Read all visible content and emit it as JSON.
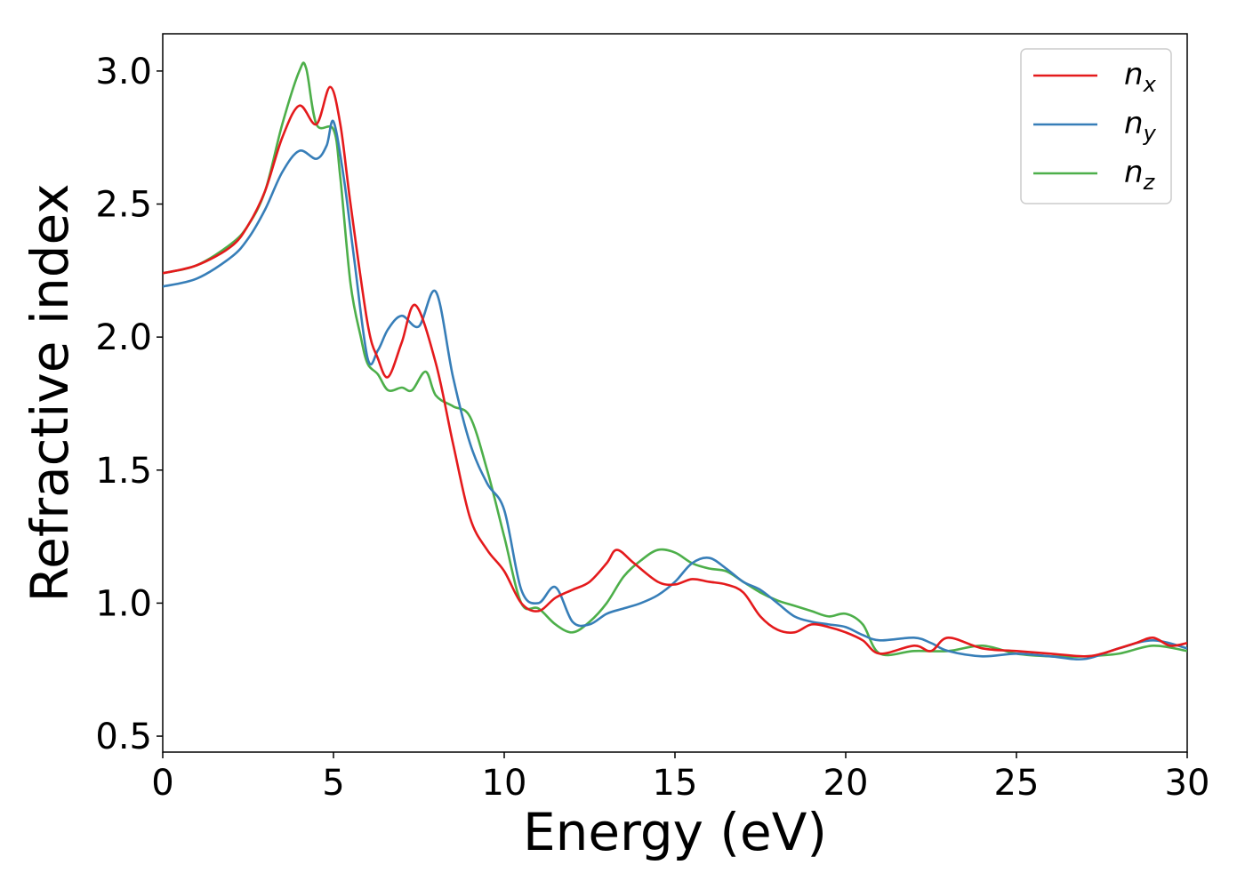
{
  "chart_data": {
    "type": "line",
    "title": "",
    "xlabel": "Energy (eV)",
    "ylabel": "Refractive index",
    "xlim": [
      0,
      30
    ],
    "ylim": [
      0.44,
      3.14
    ],
    "xticks": [
      0,
      5,
      10,
      15,
      20,
      25,
      30
    ],
    "xtick_labels": [
      "0",
      "5",
      "10",
      "15",
      "20",
      "25",
      "30"
    ],
    "yticks": [
      0.5,
      1.0,
      1.5,
      2.0,
      2.5,
      3.0
    ],
    "ytick_labels": [
      "0.5",
      "1.0",
      "1.5",
      "2.0",
      "2.5",
      "3.0"
    ],
    "grid": false,
    "legend_position": "top-right",
    "series": [
      {
        "name": "n_x",
        "label_main": "n",
        "label_sub": "x",
        "color": "#e41a1c",
        "x": [
          0,
          1,
          2,
          2.5,
          3,
          3.5,
          4,
          4.5,
          4.9,
          5.2,
          5.5,
          6,
          6.3,
          6.6,
          7,
          7.4,
          8,
          8.5,
          9,
          9.5,
          10,
          10.5,
          11,
          11.5,
          12,
          12.5,
          13,
          13.3,
          13.8,
          14.5,
          15,
          15.5,
          16,
          16.5,
          17,
          17.5,
          18,
          18.5,
          19,
          19.5,
          20,
          20.5,
          21,
          22,
          22.5,
          23,
          24,
          25,
          26,
          27,
          27.5,
          28,
          28.5,
          29,
          29.5,
          30
        ],
        "y": [
          2.24,
          2.27,
          2.34,
          2.42,
          2.55,
          2.75,
          2.87,
          2.8,
          2.94,
          2.8,
          2.5,
          2.05,
          1.92,
          1.85,
          1.98,
          2.12,
          1.9,
          1.6,
          1.32,
          1.2,
          1.12,
          1.0,
          0.97,
          1.02,
          1.05,
          1.08,
          1.15,
          1.2,
          1.15,
          1.08,
          1.07,
          1.09,
          1.08,
          1.07,
          1.04,
          0.95,
          0.9,
          0.89,
          0.92,
          0.91,
          0.89,
          0.86,
          0.81,
          0.84,
          0.82,
          0.87,
          0.83,
          0.82,
          0.81,
          0.8,
          0.81,
          0.83,
          0.85,
          0.87,
          0.84,
          0.85
        ]
      },
      {
        "name": "n_y",
        "label_main": "n",
        "label_sub": "y",
        "color": "#377eb8",
        "x": [
          0,
          1,
          2,
          2.5,
          3,
          3.5,
          4,
          4.5,
          4.8,
          5.0,
          5.3,
          5.6,
          6,
          6.3,
          6.6,
          7,
          7.5,
          8,
          8.5,
          9,
          9.5,
          10,
          10.5,
          11,
          11.5,
          12,
          12.5,
          13,
          13.5,
          14,
          14.5,
          15,
          15.5,
          16,
          16.5,
          17,
          17.5,
          18,
          18.5,
          19,
          19.5,
          20,
          20.5,
          21,
          22,
          22.5,
          23,
          24,
          25,
          26,
          27,
          28,
          29,
          30
        ],
        "y": [
          2.19,
          2.22,
          2.3,
          2.37,
          2.48,
          2.62,
          2.7,
          2.67,
          2.72,
          2.81,
          2.6,
          2.3,
          1.92,
          1.95,
          2.03,
          2.08,
          2.04,
          2.17,
          1.85,
          1.6,
          1.45,
          1.35,
          1.05,
          1.0,
          1.06,
          0.93,
          0.92,
          0.96,
          0.98,
          1.0,
          1.03,
          1.08,
          1.15,
          1.17,
          1.13,
          1.08,
          1.05,
          1.0,
          0.95,
          0.93,
          0.92,
          0.91,
          0.88,
          0.86,
          0.87,
          0.85,
          0.82,
          0.8,
          0.81,
          0.8,
          0.79,
          0.83,
          0.86,
          0.83
        ]
      },
      {
        "name": "n_z",
        "label_main": "n",
        "label_sub": "z",
        "color": "#4daf4a",
        "x": [
          0,
          1,
          2,
          2.5,
          3,
          3.5,
          4,
          4.2,
          4.5,
          5.0,
          5.2,
          5.5,
          5.8,
          6,
          6.3,
          6.6,
          7,
          7.3,
          7.7,
          8,
          8.5,
          9,
          9.5,
          10,
          10.5,
          11,
          11.5,
          12,
          12.5,
          13,
          13.5,
          14,
          14.5,
          15,
          15.5,
          16,
          16.5,
          17,
          17.5,
          18,
          18.5,
          19,
          19.5,
          20,
          20.5,
          21,
          22,
          23,
          24,
          25,
          26,
          27,
          28,
          29,
          30
        ],
        "y": [
          2.24,
          2.27,
          2.35,
          2.42,
          2.55,
          2.8,
          3.0,
          3.01,
          2.8,
          2.78,
          2.6,
          2.2,
          2.0,
          1.9,
          1.86,
          1.8,
          1.81,
          1.8,
          1.87,
          1.78,
          1.74,
          1.7,
          1.5,
          1.25,
          1.0,
          0.98,
          0.92,
          0.89,
          0.93,
          1.0,
          1.1,
          1.16,
          1.2,
          1.19,
          1.15,
          1.13,
          1.12,
          1.08,
          1.04,
          1.01,
          0.99,
          0.97,
          0.95,
          0.96,
          0.92,
          0.81,
          0.82,
          0.82,
          0.84,
          0.81,
          0.8,
          0.8,
          0.81,
          0.84,
          0.82
        ]
      }
    ]
  }
}
